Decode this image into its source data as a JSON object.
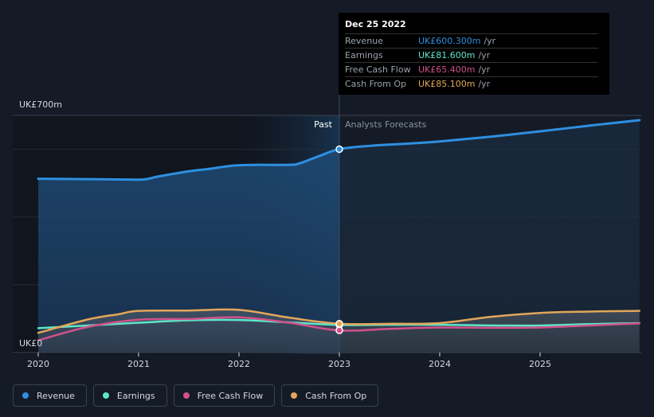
{
  "chart_data": {
    "type": "line",
    "title": "",
    "y_unit_label_top": "UK£700m",
    "y_unit_label_bottom": "UK£0",
    "ylim": [
      0,
      700
    ],
    "xlim": [
      2019.75,
      2025.99
    ],
    "x_ticks": [
      {
        "label": "2020",
        "value": 2020
      },
      {
        "label": "2021",
        "value": 2021
      },
      {
        "label": "2022",
        "value": 2022
      },
      {
        "label": "2023",
        "value": 2023
      },
      {
        "label": "2024",
        "value": 2024
      },
      {
        "label": "2025",
        "value": 2025
      }
    ],
    "gridlines": [
      700,
      600,
      400,
      200
    ],
    "divider_x": 2023.0,
    "highlight_start_x": 2022.0,
    "past_label": "Past",
    "forecast_label": "Analysts Forecasts",
    "series": [
      {
        "name": "Revenue",
        "key": "revenue",
        "color": "#2e8fe0",
        "fill": true,
        "points": [
          [
            2020.0,
            513
          ],
          [
            2020.4,
            512
          ],
          [
            2020.8,
            511
          ],
          [
            2021.05,
            511
          ],
          [
            2021.2,
            520
          ],
          [
            2021.5,
            535
          ],
          [
            2021.7,
            542
          ],
          [
            2021.95,
            552
          ],
          [
            2022.2,
            554
          ],
          [
            2022.5,
            554
          ],
          [
            2022.6,
            558
          ],
          [
            2022.8,
            580
          ],
          [
            2023.0,
            600.3
          ],
          [
            2023.3,
            610
          ],
          [
            2023.7,
            617
          ],
          [
            2024.0,
            623
          ],
          [
            2024.5,
            637
          ],
          [
            2025.0,
            653
          ],
          [
            2025.5,
            670
          ],
          [
            2025.99,
            686
          ]
        ]
      },
      {
        "name": "Earnings",
        "key": "earnings",
        "color": "#5ee6c8",
        "fill": false,
        "points": [
          [
            2020.0,
            72
          ],
          [
            2020.5,
            80
          ],
          [
            2021.0,
            88
          ],
          [
            2021.5,
            95
          ],
          [
            2022.0,
            96
          ],
          [
            2022.5,
            89
          ],
          [
            2023.0,
            81.6
          ],
          [
            2023.5,
            82
          ],
          [
            2024.0,
            82
          ],
          [
            2024.5,
            80
          ],
          [
            2025.0,
            80
          ],
          [
            2025.5,
            84
          ],
          [
            2025.99,
            87
          ]
        ]
      },
      {
        "name": "Free Cash Flow",
        "key": "fcf",
        "color": "#d1508a",
        "fill": false,
        "points": [
          [
            2020.0,
            36
          ],
          [
            2020.5,
            76
          ],
          [
            2021.0,
            97
          ],
          [
            2021.5,
            99
          ],
          [
            2022.0,
            104
          ],
          [
            2022.5,
            88
          ],
          [
            2023.0,
            65.4
          ],
          [
            2023.5,
            70
          ],
          [
            2024.0,
            74
          ],
          [
            2024.5,
            73
          ],
          [
            2025.0,
            74
          ],
          [
            2025.5,
            80
          ],
          [
            2025.99,
            86
          ]
        ]
      },
      {
        "name": "Cash From Op",
        "key": "cfo",
        "color": "#e3a65a",
        "fill": false,
        "points": [
          [
            2020.0,
            58
          ],
          [
            2020.5,
            98
          ],
          [
            2020.8,
            113
          ],
          [
            2021.0,
            123
          ],
          [
            2021.5,
            124
          ],
          [
            2022.0,
            126
          ],
          [
            2022.5,
            103
          ],
          [
            2023.0,
            85.1
          ],
          [
            2023.5,
            85
          ],
          [
            2024.0,
            87
          ],
          [
            2024.5,
            105
          ],
          [
            2025.0,
            117
          ],
          [
            2025.5,
            121
          ],
          [
            2025.99,
            123
          ]
        ]
      }
    ]
  },
  "tooltip": {
    "date": "Dec 25 2022",
    "rows": [
      {
        "label": "Revenue",
        "value": "UK£600.300m",
        "unit": "/yr",
        "color": "#2e8fe0"
      },
      {
        "label": "Earnings",
        "value": "UK£81.600m",
        "unit": "/yr",
        "color": "#5ee6c8"
      },
      {
        "label": "Free Cash Flow",
        "value": "UK£65.400m",
        "unit": "/yr",
        "color": "#d1508a"
      },
      {
        "label": "Cash From Op",
        "value": "UK£85.100m",
        "unit": "/yr",
        "color": "#e3a65a"
      }
    ]
  },
  "legend": [
    {
      "label": "Revenue",
      "color": "#2e8fe0"
    },
    {
      "label": "Earnings",
      "color": "#5ee6c8"
    },
    {
      "label": "Free Cash Flow",
      "color": "#d1508a"
    },
    {
      "label": "Cash From Op",
      "color": "#e3a65a"
    }
  ]
}
